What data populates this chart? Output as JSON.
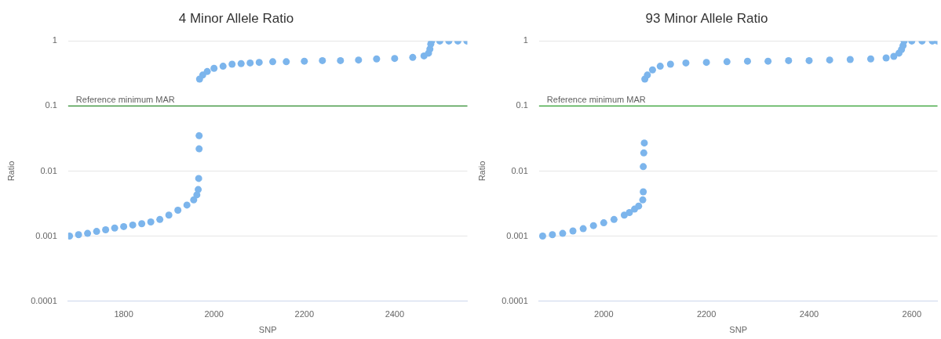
{
  "chart_data": [
    {
      "type": "scatter",
      "title": "4 Minor Allele Ratio",
      "xlabel": "SNP",
      "ylabel": "Ratio",
      "log": "y",
      "grid": "y",
      "legend": false,
      "marker": "circle",
      "xlim": [
        1677,
        2561
      ],
      "xticks": [
        1800,
        2000,
        2200,
        2400
      ],
      "ylim": [
        0.0001,
        1
      ],
      "yticks": [
        0.0001,
        0.001,
        0.01,
        0.1,
        1
      ],
      "ref_lines": [
        {
          "axis": "y",
          "value": 0.1,
          "label": "Reference minimum MAR",
          "color": "#2e8b2e"
        }
      ],
      "series": [
        {
          "color": "#7cb5ec",
          "x": [
            1680,
            1700,
            1720,
            1740,
            1760,
            1780,
            1800,
            1820,
            1840,
            1860,
            1880,
            1900,
            1920,
            1940,
            1955,
            1962,
            1965,
            1966,
            1967,
            1967,
            1968,
            1975,
            1985,
            2000,
            2020,
            2040,
            2060,
            2080,
            2100,
            2130,
            2160,
            2200,
            2240,
            2280,
            2320,
            2360,
            2400,
            2440,
            2465,
            2475,
            2478,
            2480,
            2482,
            2500,
            2520,
            2540,
            2560
          ],
          "values": [
            0.001,
            0.00105,
            0.0011,
            0.00118,
            0.00125,
            0.00133,
            0.0014,
            0.00148,
            0.00155,
            0.00165,
            0.0018,
            0.0021,
            0.0025,
            0.003,
            0.0036,
            0.0043,
            0.0052,
            0.0077,
            0.022,
            0.035,
            0.26,
            0.3,
            0.34,
            0.38,
            0.41,
            0.44,
            0.45,
            0.46,
            0.47,
            0.48,
            0.48,
            0.49,
            0.5,
            0.5,
            0.51,
            0.53,
            0.54,
            0.56,
            0.59,
            0.65,
            0.75,
            0.9,
            1,
            1,
            1,
            1,
            1
          ]
        }
      ]
    },
    {
      "type": "scatter",
      "title": "93 Minor Allele Ratio",
      "xlabel": "SNP",
      "ylabel": "Ratio",
      "log": "y",
      "grid": "y",
      "legend": false,
      "marker": "circle",
      "xlim": [
        1874,
        2650
      ],
      "xticks": [
        2000,
        2200,
        2400,
        2600
      ],
      "ylim": [
        0.0001,
        1
      ],
      "yticks": [
        0.0001,
        0.001,
        0.01,
        0.1,
        1
      ],
      "ref_lines": [
        {
          "axis": "y",
          "value": 0.1,
          "label": "Reference minimum MAR",
          "color": "#2e9e2e"
        }
      ],
      "series": [
        {
          "color": "#7cb5ec",
          "x": [
            1881,
            1900,
            1920,
            1940,
            1960,
            1980,
            2000,
            2020,
            2040,
            2050,
            2060,
            2068,
            2076,
            2077,
            2077,
            2078,
            2079,
            2080,
            2085,
            2095,
            2110,
            2130,
            2160,
            2200,
            2240,
            2280,
            2320,
            2360,
            2400,
            2440,
            2480,
            2520,
            2550,
            2565,
            2575,
            2580,
            2583,
            2585,
            2600,
            2620,
            2640,
            2650
          ],
          "values": [
            0.001,
            0.00105,
            0.0011,
            0.0012,
            0.0013,
            0.00145,
            0.0016,
            0.0018,
            0.0021,
            0.0023,
            0.0026,
            0.0029,
            0.0036,
            0.0048,
            0.0117,
            0.019,
            0.027,
            0.26,
            0.3,
            0.36,
            0.41,
            0.44,
            0.46,
            0.47,
            0.48,
            0.49,
            0.49,
            0.5,
            0.5,
            0.51,
            0.52,
            0.53,
            0.55,
            0.58,
            0.65,
            0.74,
            0.85,
            1,
            1,
            1,
            1,
            1
          ]
        }
      ]
    }
  ]
}
